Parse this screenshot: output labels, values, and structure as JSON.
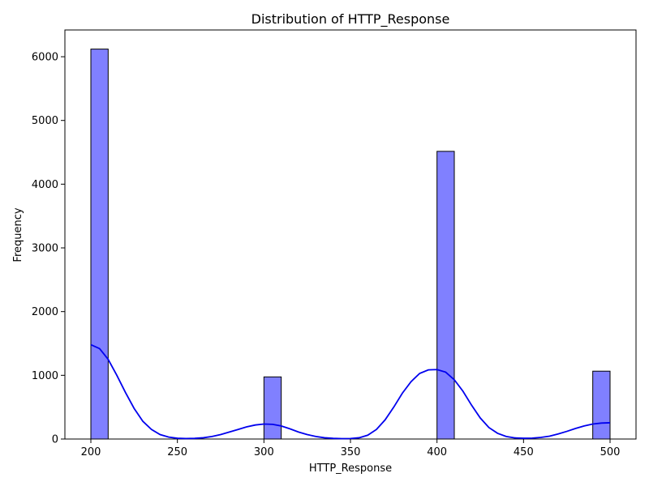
{
  "chart_data": {
    "type": "bar",
    "title": "Distribution of HTTP_Response",
    "xlabel": "HTTP_Response",
    "ylabel": "Frequency",
    "xlim": [
      185,
      515
    ],
    "ylim": [
      0,
      6420
    ],
    "xticks": [
      200,
      250,
      300,
      350,
      400,
      450,
      500
    ],
    "yticks": [
      0,
      1000,
      2000,
      3000,
      4000,
      5000,
      6000
    ],
    "grid": false,
    "bins": [
      {
        "x0": 200,
        "x1": 210,
        "value": 6120
      },
      {
        "x0": 300,
        "x1": 310,
        "value": 975
      },
      {
        "x0": 400,
        "x1": 410,
        "value": 4515
      },
      {
        "x0": 490,
        "x1": 500,
        "value": 1065
      }
    ],
    "kde": {
      "x": [
        200,
        205,
        210,
        215,
        220,
        225,
        230,
        235,
        240,
        245,
        250,
        255,
        260,
        265,
        270,
        275,
        280,
        285,
        290,
        295,
        300,
        305,
        310,
        315,
        320,
        325,
        330,
        335,
        340,
        345,
        350,
        355,
        360,
        365,
        370,
        375,
        380,
        385,
        390,
        395,
        400,
        405,
        410,
        415,
        420,
        425,
        430,
        435,
        440,
        445,
        450,
        455,
        460,
        465,
        470,
        475,
        480,
        485,
        490,
        495,
        500
      ],
      "y": [
        1480,
        1420,
        1250,
        1000,
        730,
        480,
        280,
        150,
        70,
        30,
        12,
        8,
        10,
        20,
        40,
        70,
        110,
        150,
        190,
        220,
        235,
        230,
        205,
        160,
        110,
        70,
        40,
        20,
        10,
        6,
        8,
        20,
        60,
        150,
        300,
        500,
        720,
        900,
        1030,
        1085,
        1090,
        1050,
        930,
        750,
        530,
        330,
        180,
        90,
        40,
        18,
        12,
        14,
        25,
        45,
        80,
        120,
        165,
        205,
        235,
        250,
        255
      ],
      "color": "#0000ee"
    },
    "bar_color": "#8080ff",
    "bar_edge_color": "#000000"
  }
}
